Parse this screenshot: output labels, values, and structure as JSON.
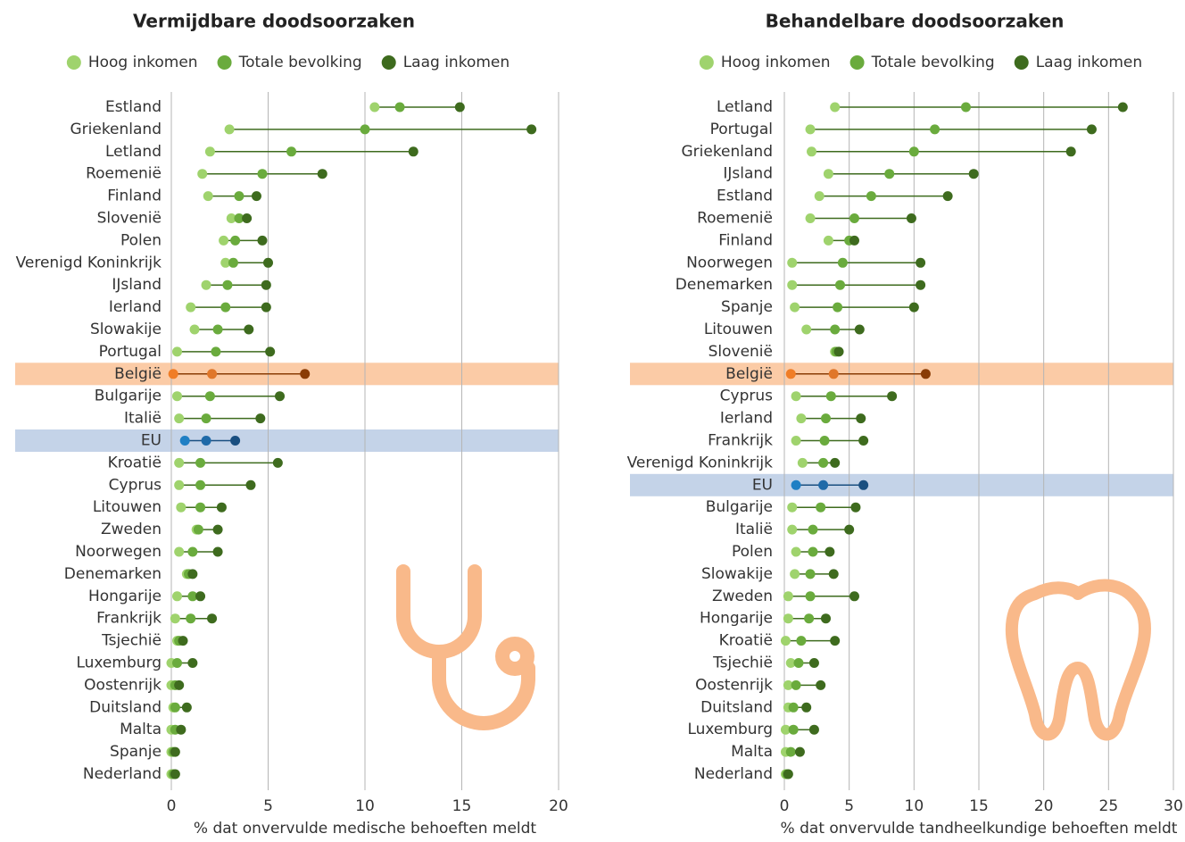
{
  "chart_data": [
    {
      "type": "dot",
      "title": "Vermijdbare doodsoorzaken",
      "xlabel": "% dat onvervulde medische behoeften meldt",
      "categories": [
        "Estland",
        "Griekenland",
        "Letland",
        "Roemenië",
        "Finland",
        "Slovenië",
        "Polen",
        "Verenigd Koninkrijk",
        "IJsland",
        "Ierland",
        "Slowakije",
        "Portugal",
        "België",
        "Bulgarije",
        "Italië",
        "EU",
        "Kroatië",
        "Cyprus",
        "Litouwen",
        "Zweden",
        "Noorwegen",
        "Denemarken",
        "Hongarije",
        "Frankrijk",
        "Tsjechië",
        "Luxemburg",
        "Oostenrijk",
        "Duitsland",
        "Malta",
        "Spanje",
        "Nederland"
      ],
      "series": [
        {
          "name": "Hoog inkomen",
          "color": "#9fd36d",
          "values": [
            10.5,
            3.0,
            2.0,
            1.6,
            1.9,
            3.1,
            2.7,
            2.8,
            1.8,
            1.0,
            1.2,
            0.3,
            0.1,
            0.3,
            0.4,
            0.7,
            0.4,
            0.4,
            0.5,
            1.3,
            0.4,
            0.8,
            0.3,
            0.2,
            0.3,
            0.0,
            0.0,
            0.1,
            0.0,
            0.0,
            0.0
          ]
        },
        {
          "name": "Totale bevolking",
          "color": "#6aab3d",
          "values": [
            11.8,
            10.0,
            6.2,
            4.7,
            3.5,
            3.5,
            3.3,
            3.2,
            2.9,
            2.8,
            2.4,
            2.3,
            2.1,
            2.0,
            1.8,
            1.8,
            1.5,
            1.5,
            1.5,
            1.4,
            1.1,
            0.9,
            1.1,
            1.0,
            0.4,
            0.3,
            0.2,
            0.2,
            0.2,
            0.1,
            0.1
          ]
        },
        {
          "name": "Laag inkomen",
          "color": "#3e6b1e",
          "values": [
            14.9,
            18.6,
            12.5,
            7.8,
            4.4,
            3.9,
            4.7,
            5.0,
            4.9,
            4.9,
            4.0,
            5.1,
            6.9,
            5.6,
            4.6,
            3.3,
            5.5,
            4.1,
            2.6,
            2.4,
            2.4,
            1.1,
            1.5,
            2.1,
            0.6,
            1.1,
            0.4,
            0.8,
            0.5,
            0.2,
            0.2
          ]
        }
      ],
      "highlights": {
        "België": {
          "band": "#fbcba6",
          "line": "#8a3c05",
          "colors": [
            "#f07d26",
            "#e0772a",
            "#8a3c05"
          ]
        },
        "EU": {
          "band": "#c4d3e8",
          "line": "#1a4f80",
          "colors": [
            "#1f7fc4",
            "#1f6aa8",
            "#1a4f80"
          ]
        }
      },
      "xlim": [
        0,
        20
      ],
      "xticks": [
        0,
        5,
        10,
        15,
        20
      ],
      "grid": true
    },
    {
      "type": "dot",
      "title": "Behandelbare doodsoorzaken",
      "xlabel": "% dat onvervulde tandheelkundige behoeften meldt",
      "categories": [
        "Letland",
        "Portugal",
        "Griekenland",
        "IJsland",
        "Estland",
        "Roemenië",
        "Finland",
        "Noorwegen",
        "Denemarken",
        "Spanje",
        "Litouwen",
        "Slovenië",
        "België",
        "Cyprus",
        "Ierland",
        "Frankrijk",
        "Verenigd Koninkrijk",
        "EU",
        "Bulgarije",
        "Italië",
        "Polen",
        "Slowakije",
        "Zweden",
        "Hongarije",
        "Kroatië",
        "Tsjechië",
        "Oostenrijk",
        "Duitsland",
        "Luxemburg",
        "Malta",
        "Nederland"
      ],
      "series": [
        {
          "name": "Hoog inkomen",
          "color": "#9fd36d",
          "values": [
            3.9,
            2.0,
            2.1,
            3.4,
            2.7,
            2.0,
            3.4,
            0.6,
            0.6,
            0.8,
            1.7,
            3.9,
            0.5,
            0.9,
            1.3,
            0.9,
            1.4,
            0.9,
            0.6,
            0.6,
            0.9,
            0.8,
            0.3,
            0.3,
            0.1,
            0.5,
            0.3,
            0.3,
            0.1,
            0.1,
            0.1
          ]
        },
        {
          "name": "Totale bevolking",
          "color": "#6aab3d",
          "values": [
            14.0,
            11.6,
            10.0,
            8.1,
            6.7,
            5.4,
            5.0,
            4.5,
            4.3,
            4.1,
            3.9,
            4.0,
            3.8,
            3.6,
            3.2,
            3.1,
            3.0,
            3.0,
            2.8,
            2.2,
            2.2,
            2.0,
            2.0,
            1.9,
            1.3,
            1.1,
            0.9,
            0.7,
            0.7,
            0.5,
            0.2
          ]
        },
        {
          "name": "Laag inkomen",
          "color": "#3e6b1e",
          "values": [
            26.1,
            23.7,
            22.1,
            14.6,
            12.6,
            9.8,
            5.4,
            10.5,
            10.5,
            10.0,
            5.8,
            4.2,
            10.9,
            8.3,
            5.9,
            6.1,
            3.9,
            6.1,
            5.5,
            5.0,
            3.5,
            3.8,
            5.4,
            3.2,
            3.9,
            2.3,
            2.8,
            1.7,
            2.3,
            1.2,
            0.3
          ]
        }
      ],
      "highlights": {
        "België": {
          "band": "#fbcba6",
          "line": "#8a3c05",
          "colors": [
            "#f07d26",
            "#e0772a",
            "#8a3c05"
          ]
        },
        "EU": {
          "band": "#c4d3e8",
          "line": "#1a4f80",
          "colors": [
            "#1f7fc4",
            "#1f6aa8",
            "#1a4f80"
          ]
        }
      },
      "xlim": [
        0,
        30
      ],
      "xticks": [
        0,
        5,
        10,
        15,
        20,
        25,
        30
      ],
      "grid": true
    }
  ]
}
